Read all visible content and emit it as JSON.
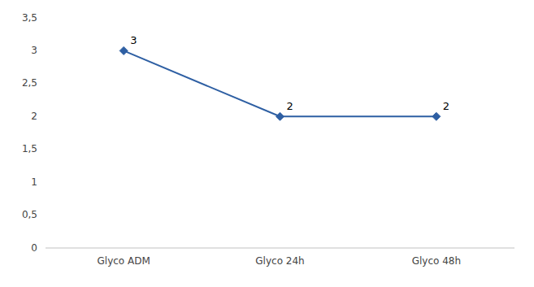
{
  "chart_data": {
    "type": "line",
    "categories": [
      "Glyco ADM",
      "Glyco 24h",
      "Glyco 48h"
    ],
    "values": [
      3,
      2,
      2
    ],
    "color": "#2E5FA3",
    "marker": "diamond",
    "ylim": [
      0,
      3.5
    ],
    "yticks": [
      0,
      {
        "value": 0.5,
        "label": "0,5"
      },
      1,
      {
        "value": 1.5,
        "label": "1,5"
      },
      2,
      {
        "value": 2.5,
        "label": "2,5"
      },
      3,
      {
        "value": 3.5,
        "label": "3,5"
      }
    ],
    "grid": false,
    "data_labels": true
  }
}
